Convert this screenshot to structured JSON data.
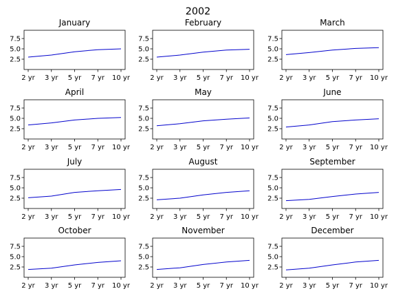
{
  "chart_data": {
    "type": "line",
    "title": "2002",
    "categories": [
      "2 yr",
      "3 yr",
      "5 yr",
      "7 yr",
      "10 yr"
    ],
    "yticks": [
      "2.5",
      "5.0",
      "7.5"
    ],
    "ylim": [
      0,
      9.5
    ],
    "line_color": "#0000cc",
    "panels": [
      {
        "title": "January",
        "values": [
          3.0,
          3.5,
          4.3,
          4.8,
          5.0
        ]
      },
      {
        "title": "February",
        "values": [
          3.0,
          3.5,
          4.2,
          4.7,
          4.9
        ]
      },
      {
        "title": "March",
        "values": [
          3.6,
          4.1,
          4.7,
          5.1,
          5.3
        ]
      },
      {
        "title": "April",
        "values": [
          3.4,
          3.9,
          4.6,
          5.0,
          5.2
        ]
      },
      {
        "title": "May",
        "values": [
          3.2,
          3.7,
          4.4,
          4.8,
          5.1
        ]
      },
      {
        "title": "June",
        "values": [
          2.9,
          3.4,
          4.2,
          4.6,
          4.9
        ]
      },
      {
        "title": "July",
        "values": [
          2.6,
          3.0,
          3.9,
          4.3,
          4.6
        ]
      },
      {
        "title": "August",
        "values": [
          2.1,
          2.5,
          3.3,
          3.9,
          4.3
        ]
      },
      {
        "title": "September",
        "values": [
          1.9,
          2.2,
          2.9,
          3.5,
          3.9
        ]
      },
      {
        "title": "October",
        "values": [
          1.9,
          2.2,
          3.0,
          3.6,
          4.0
        ]
      },
      {
        "title": "November",
        "values": [
          1.9,
          2.3,
          3.1,
          3.7,
          4.1
        ]
      },
      {
        "title": "December",
        "values": [
          1.8,
          2.2,
          3.0,
          3.7,
          4.1
        ]
      }
    ]
  }
}
